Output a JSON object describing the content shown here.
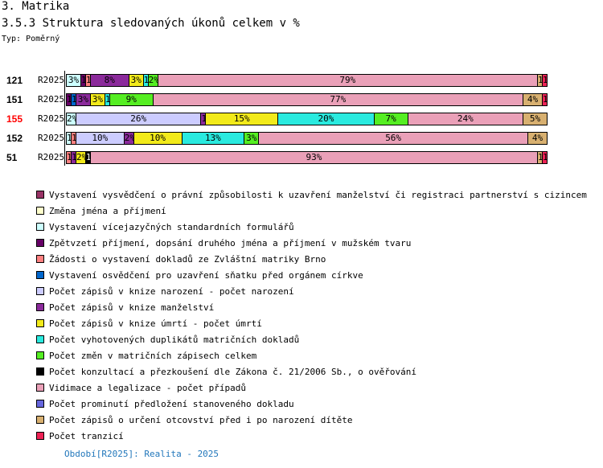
{
  "header": {
    "title": "3. Matrika",
    "subtitle": "3.5.3 Struktura sledovaných úkonů celkem v %",
    "type_label": "Typ: Poměrný"
  },
  "chart_data": {
    "type": "bar",
    "stacked": true,
    "orientation": "horizontal",
    "title": "3.5.3 Struktura sledovaných úkonů celkem v %",
    "xlim": [
      0,
      100
    ],
    "categories_legend": [
      {
        "name": "Vystavení vysvědčení o právní způsobilosti k uzavření manželství či registraci partnerství s cizincem",
        "color": "#993366"
      },
      {
        "name": "Změna jména a příjmení",
        "color": "#ffffcc"
      },
      {
        "name": "Vystavení vícejazyčných standardních formulářů",
        "color": "#ccffff"
      },
      {
        "name": "Zpětvzetí příjmení, dopsání druhého jména a příjmení v mužském tvaru",
        "color": "#660066"
      },
      {
        "name": "Žádosti o vystavení dokladů ze Zvláštní matriky Brno",
        "color": "#ff8080"
      },
      {
        "name": "Vystavení osvědčení pro uzavření sňatku před orgánem církve",
        "color": "#0066cc"
      },
      {
        "name": "Počet zápisů v knize narození - počet narození",
        "color": "#ccccff"
      },
      {
        "name": "Počet zápisů v knize manželství",
        "color": "#8b2a9b"
      },
      {
        "name": "Počet zápisů v knize úmrtí - počet úmrtí",
        "color": "#f2ea1a"
      },
      {
        "name": "Počet vyhotovených duplikátů matričních dokladů",
        "color": "#2aeadf"
      },
      {
        "name": "Počet změn v matričních zápisech celkem",
        "color": "#55ee22"
      },
      {
        "name": "Počet  konzultací a přezkoušení dle Zákona č. 21/2006 Sb., o ověřování",
        "color": "#000000"
      },
      {
        "name": "Vidimace a legalizace - počet případů",
        "color": "#eaa0b8"
      },
      {
        "name": "Počet prominutí předložení stanoveného dokladu",
        "color": "#6666dd"
      },
      {
        "name": "Počet zápisů o určení otcovství před i po narození dítěte",
        "color": "#d8b070"
      },
      {
        "name": "Počet tranzicí",
        "color": "#ee2255"
      }
    ],
    "rows": [
      {
        "count": "121",
        "label": "R2025",
        "highlight": false,
        "segments": [
          [
            2,
            3
          ],
          [
            3,
            1
          ],
          [
            4,
            1
          ],
          [
            7,
            8
          ],
          [
            8,
            3
          ],
          [
            9,
            1
          ],
          [
            10,
            2
          ],
          [
            12,
            79
          ],
          [
            14,
            1
          ],
          [
            15,
            1
          ]
        ]
      },
      {
        "count": "151",
        "label": "R2025",
        "highlight": false,
        "segments": [
          [
            3,
            1
          ],
          [
            5,
            1
          ],
          [
            7,
            3
          ],
          [
            8,
            3
          ],
          [
            9,
            1
          ],
          [
            10,
            9
          ],
          [
            12,
            77
          ],
          [
            14,
            4
          ],
          [
            15,
            1
          ]
        ]
      },
      {
        "count": "155",
        "label": "R2025",
        "highlight": true,
        "segments": [
          [
            2,
            2
          ],
          [
            6,
            26
          ],
          [
            7,
            1
          ],
          [
            8,
            15
          ],
          [
            9,
            20
          ],
          [
            10,
            7
          ],
          [
            12,
            24
          ],
          [
            14,
            5
          ]
        ]
      },
      {
        "count": "152",
        "label": "R2025",
        "highlight": false,
        "segments": [
          [
            2,
            1
          ],
          [
            4,
            1
          ],
          [
            6,
            10
          ],
          [
            7,
            2
          ],
          [
            8,
            10
          ],
          [
            9,
            13
          ],
          [
            10,
            3
          ],
          [
            12,
            56
          ],
          [
            14,
            4
          ]
        ]
      },
      {
        "count": "51",
        "label": "R2025",
        "highlight": false,
        "segments": [
          [
            4,
            1
          ],
          [
            7,
            1
          ],
          [
            8,
            2
          ],
          [
            11,
            1
          ],
          [
            12,
            93
          ],
          [
            14,
            1
          ],
          [
            15,
            1
          ]
        ]
      }
    ]
  },
  "footer": {
    "period": "Období[R2025]: Realita - 2025"
  }
}
